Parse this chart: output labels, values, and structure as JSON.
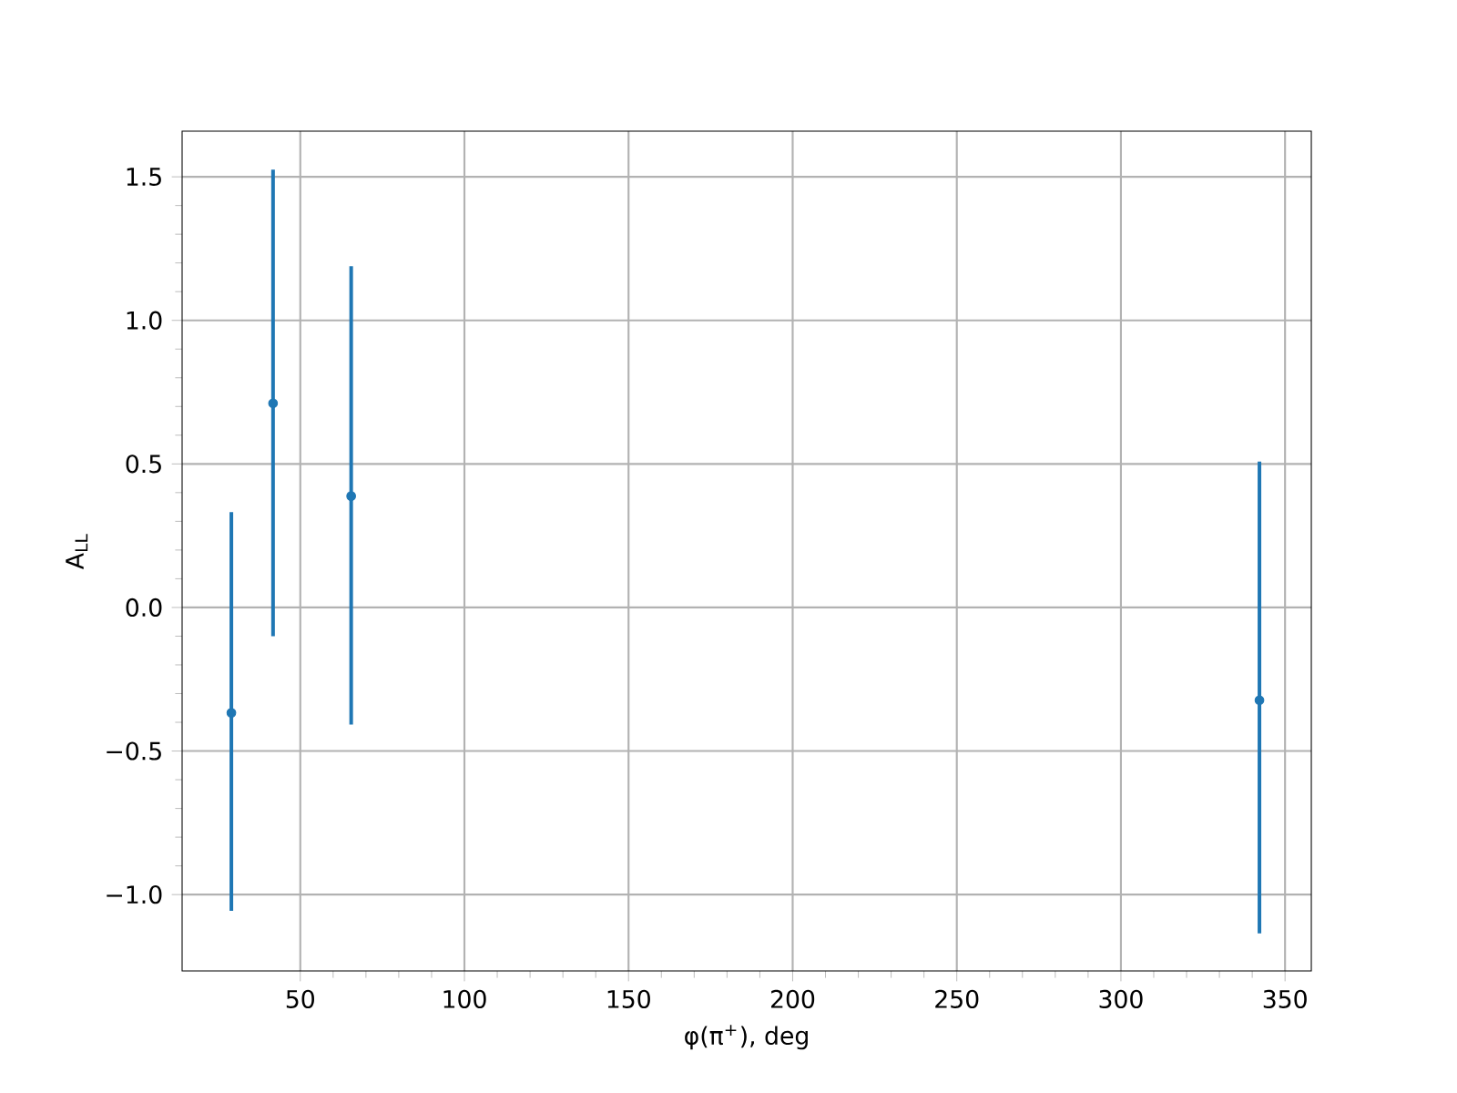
{
  "chart_data": {
    "type": "scatter",
    "xlabel": "φ(π$^{+}$), deg",
    "ylabel": "A$_{LL}$",
    "x": [
      29,
      41.7,
      65.5,
      342.2
    ],
    "series": [
      {
        "color": "#1f77b4",
        "values": [
          -0.367,
          0.711,
          0.388,
          -0.323
        ],
        "errors": [
          [
            -1.057,
            0.332
          ],
          [
            -0.1,
            1.525
          ],
          [
            -0.408,
            1.189
          ],
          [
            -1.135,
            0.508
          ]
        ]
      }
    ],
    "marker": "circle",
    "grid": true,
    "xlim": [
      14,
      358
    ],
    "ylim": [
      -1.266,
      1.659
    ],
    "xticks": [
      50,
      100,
      150,
      200,
      250,
      300,
      350
    ],
    "yticks": [
      {
        "value": -1.0,
        "label": "−1.0"
      },
      {
        "value": -0.5,
        "label": "−0.5"
      },
      {
        "value": 0.0,
        "label": "0.0"
      },
      {
        "value": 0.5,
        "label": "0.5"
      },
      {
        "value": 1.0,
        "label": "1.0"
      },
      {
        "value": 1.5,
        "label": "1.5"
      }
    ]
  }
}
